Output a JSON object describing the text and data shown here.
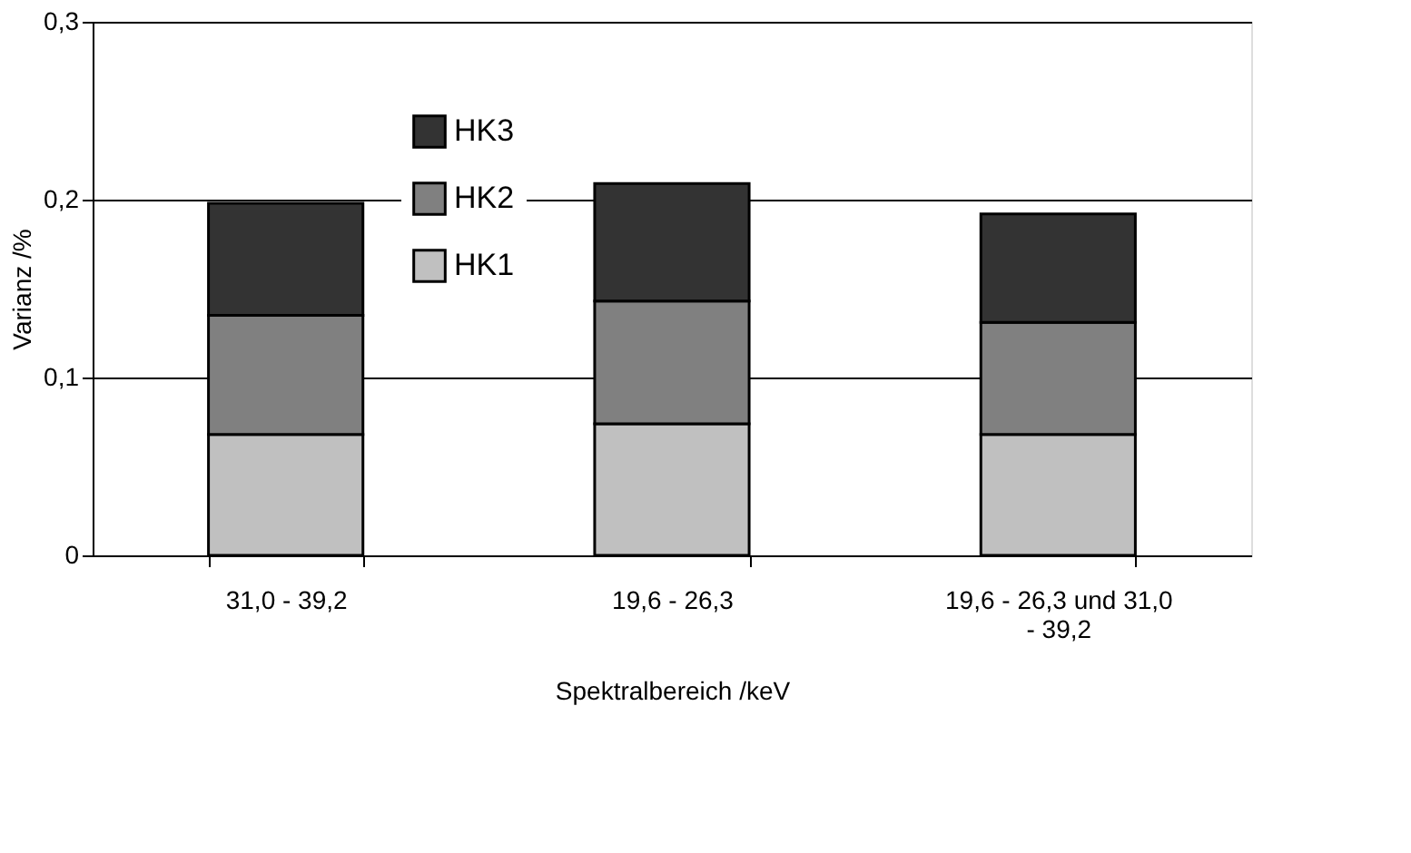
{
  "chart_data": {
    "type": "bar",
    "stacked": true,
    "xlabel": "Spektralbereich /keV",
    "ylabel": "Varianz /%",
    "categories": [
      "31,0 - 39,2",
      "19,6 - 26,3",
      "19,6 - 26,3 und 31,0 - 39,2"
    ],
    "series": [
      {
        "name": "HK1",
        "color": "#c0c0c0",
        "values": [
          0.068,
          0.074,
          0.068
        ]
      },
      {
        "name": "HK2",
        "color": "#808080",
        "values": [
          0.067,
          0.069,
          0.063
        ]
      },
      {
        "name": "HK3",
        "color": "#333333",
        "values": [
          0.063,
          0.066,
          0.061
        ]
      }
    ],
    "ylim": [
      0,
      0.3
    ],
    "yticks": [
      0,
      {
        "value": 0.1,
        "label": "0,1"
      },
      {
        "value": 0.2,
        "label": "0,2"
      },
      {
        "value": 0.3,
        "label": "0,3"
      }
    ],
    "grid": "y",
    "legend": "top left"
  }
}
